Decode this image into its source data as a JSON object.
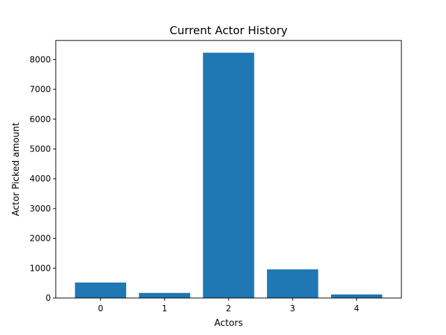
{
  "chart_data": {
    "type": "bar",
    "title": "Current Actor History",
    "xlabel": "Actors",
    "ylabel": "Actor Picked amount",
    "categories": [
      "0",
      "1",
      "2",
      "3",
      "4"
    ],
    "values": [
      520,
      170,
      8230,
      960,
      120
    ],
    "ylim": [
      0,
      8640
    ],
    "yticks": [
      0,
      1000,
      2000,
      3000,
      4000,
      5000,
      6000,
      7000,
      8000
    ],
    "ytick_labels": [
      "0",
      "1000",
      "2000",
      "3000",
      "4000",
      "5000",
      "6000",
      "7000",
      "8000"
    ],
    "bar_color": "#1f77b4",
    "grid": false
  }
}
